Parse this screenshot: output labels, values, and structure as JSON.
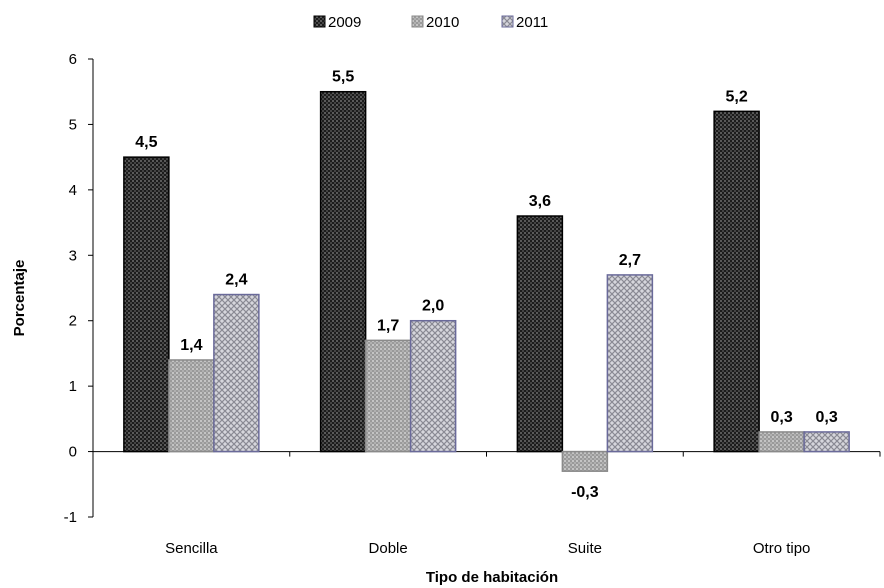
{
  "chart_data": {
    "type": "bar",
    "categories": [
      "Sencilla",
      "Doble",
      "Suite",
      "Otro tipo"
    ],
    "series": [
      {
        "name": "2009",
        "values": [
          4.5,
          5.5,
          3.6,
          5.2
        ],
        "labels": [
          "4,5",
          "5,5",
          "3,6",
          "5,2"
        ],
        "color": "#2b2b2b",
        "pattern": "dark-dots"
      },
      {
        "name": "2010",
        "values": [
          1.4,
          1.7,
          -0.3,
          0.3
        ],
        "labels": [
          "1,4",
          "1,7",
          "-0,3",
          "0,3"
        ],
        "color": "#a6a6a6",
        "pattern": "gray-dots"
      },
      {
        "name": "2011",
        "values": [
          2.4,
          2.0,
          2.7,
          0.3
        ],
        "labels": [
          "2,4",
          "2,0",
          "2,7",
          "0,3"
        ],
        "color": "#c8c8c8",
        "pattern": "crosshatch"
      }
    ],
    "title": "",
    "xlabel": "Tipo de habitación",
    "ylabel": "Porcentaje",
    "ylim": [
      -1,
      6
    ],
    "yticks": [
      -1,
      0,
      1,
      2,
      3,
      4,
      5,
      6
    ],
    "grid": false,
    "legend_position": "top"
  }
}
